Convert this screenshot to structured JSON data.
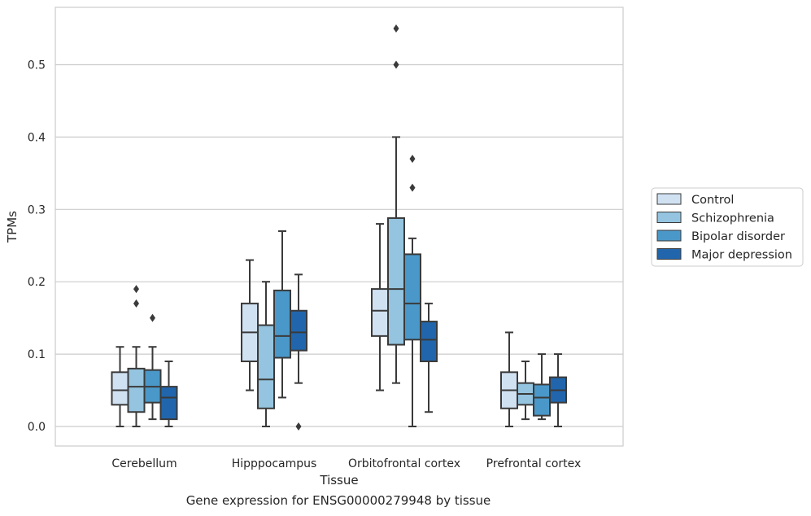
{
  "chart_data": {
    "type": "box",
    "title": "",
    "xlabel": "Tissue",
    "ylabel": "TPMs",
    "caption": "Gene expression for ENSG00000279948 by tissue",
    "ylim": [
      -0.028,
      0.578
    ],
    "yticks": [
      0.0,
      0.1,
      0.2,
      0.3,
      0.4,
      0.5
    ],
    "ytick_labels": [
      "0.0",
      "0.1",
      "0.2",
      "0.3",
      "0.4",
      "0.5"
    ],
    "grid": "horizontal",
    "legend_position": "right",
    "categories": [
      "Cerebellum",
      "Hipppocampus",
      "Orbitofrontal cortex",
      "Prefrontal cortex"
    ],
    "series": [
      {
        "name": "Control",
        "color": "#d0e1f2",
        "boxes": [
          {
            "whislo": 0.0,
            "q1": 0.03,
            "med": 0.05,
            "q3": 0.075,
            "whishi": 0.11,
            "fliers": []
          },
          {
            "whislo": 0.05,
            "q1": 0.09,
            "med": 0.13,
            "q3": 0.17,
            "whishi": 0.23,
            "fliers": []
          },
          {
            "whislo": 0.05,
            "q1": 0.125,
            "med": 0.16,
            "q3": 0.19,
            "whishi": 0.28,
            "fliers": []
          },
          {
            "whislo": 0.0,
            "q1": 0.025,
            "med": 0.05,
            "q3": 0.075,
            "whishi": 0.13,
            "fliers": []
          }
        ]
      },
      {
        "name": "Schizophrenia",
        "color": "#94c4df",
        "boxes": [
          {
            "whislo": 0.0,
            "q1": 0.02,
            "med": 0.055,
            "q3": 0.08,
            "whishi": 0.11,
            "fliers": [
              0.17,
              0.19
            ]
          },
          {
            "whislo": 0.0,
            "q1": 0.025,
            "med": 0.065,
            "q3": 0.14,
            "whishi": 0.2,
            "fliers": []
          },
          {
            "whislo": 0.06,
            "q1": 0.113,
            "med": 0.19,
            "q3": 0.288,
            "whishi": 0.4,
            "fliers": [
              0.5,
              0.55
            ]
          },
          {
            "whislo": 0.01,
            "q1": 0.03,
            "med": 0.045,
            "q3": 0.06,
            "whishi": 0.09,
            "fliers": []
          }
        ]
      },
      {
        "name": "Bipolar disorder",
        "color": "#4a98c9",
        "boxes": [
          {
            "whislo": 0.01,
            "q1": 0.033,
            "med": 0.055,
            "q3": 0.078,
            "whishi": 0.11,
            "fliers": [
              0.15
            ]
          },
          {
            "whislo": 0.04,
            "q1": 0.095,
            "med": 0.125,
            "q3": 0.188,
            "whishi": 0.27,
            "fliers": []
          },
          {
            "whislo": 0.0,
            "q1": 0.12,
            "med": 0.17,
            "q3": 0.238,
            "whishi": 0.26,
            "fliers": [
              0.33,
              0.37
            ]
          },
          {
            "whislo": 0.01,
            "q1": 0.015,
            "med": 0.04,
            "q3": 0.058,
            "whishi": 0.1,
            "fliers": []
          }
        ]
      },
      {
        "name": "Major depression",
        "color": "#2166ac",
        "boxes": [
          {
            "whislo": 0.0,
            "q1": 0.01,
            "med": 0.04,
            "q3": 0.055,
            "whishi": 0.09,
            "fliers": []
          },
          {
            "whislo": 0.06,
            "q1": 0.105,
            "med": 0.13,
            "q3": 0.16,
            "whishi": 0.21,
            "fliers": [
              0.0
            ]
          },
          {
            "whislo": 0.02,
            "q1": 0.09,
            "med": 0.12,
            "q3": 0.145,
            "whishi": 0.17,
            "fliers": []
          },
          {
            "whislo": 0.0,
            "q1": 0.033,
            "med": 0.05,
            "q3": 0.068,
            "whishi": 0.1,
            "fliers": []
          }
        ]
      }
    ]
  }
}
